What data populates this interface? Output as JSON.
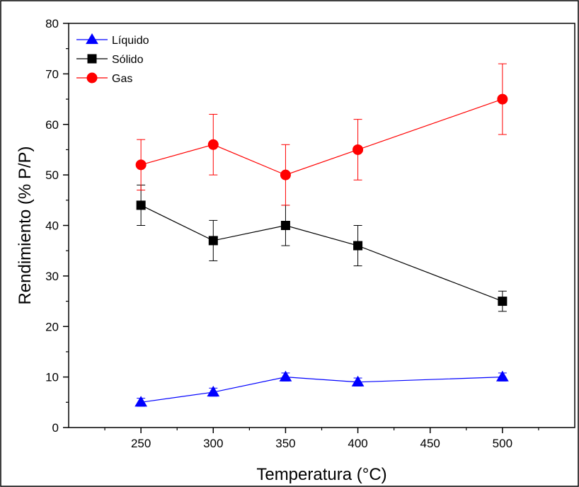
{
  "chart_data": {
    "type": "line",
    "xlabel": "Temperatura (°C)",
    "ylabel": "Rendimiento (% P/P)",
    "xlim": [
      200,
      550
    ],
    "ylim": [
      0,
      80
    ],
    "xticks": [
      250,
      300,
      350,
      400,
      450,
      500
    ],
    "yticks": [
      0,
      10,
      20,
      30,
      40,
      50,
      60,
      70,
      80
    ],
    "grid": false,
    "legend_position": "top-left",
    "x": [
      250,
      300,
      350,
      400,
      500
    ],
    "series": [
      {
        "name": "Líquido",
        "marker": "triangle",
        "color": "#0000ff",
        "values": [
          5,
          7,
          10,
          9,
          10
        ],
        "error": [
          0.8,
          0.8,
          0.8,
          0.8,
          0.8
        ]
      },
      {
        "name": "Sólido",
        "marker": "square",
        "color": "#000000",
        "values": [
          44,
          37,
          40,
          36,
          25
        ],
        "error": [
          4,
          4,
          4,
          4,
          2
        ]
      },
      {
        "name": "Gas",
        "marker": "circle",
        "color": "#ff0000",
        "values": [
          52,
          56,
          50,
          55,
          65
        ],
        "error": [
          5,
          6,
          6,
          6,
          7
        ]
      }
    ]
  }
}
